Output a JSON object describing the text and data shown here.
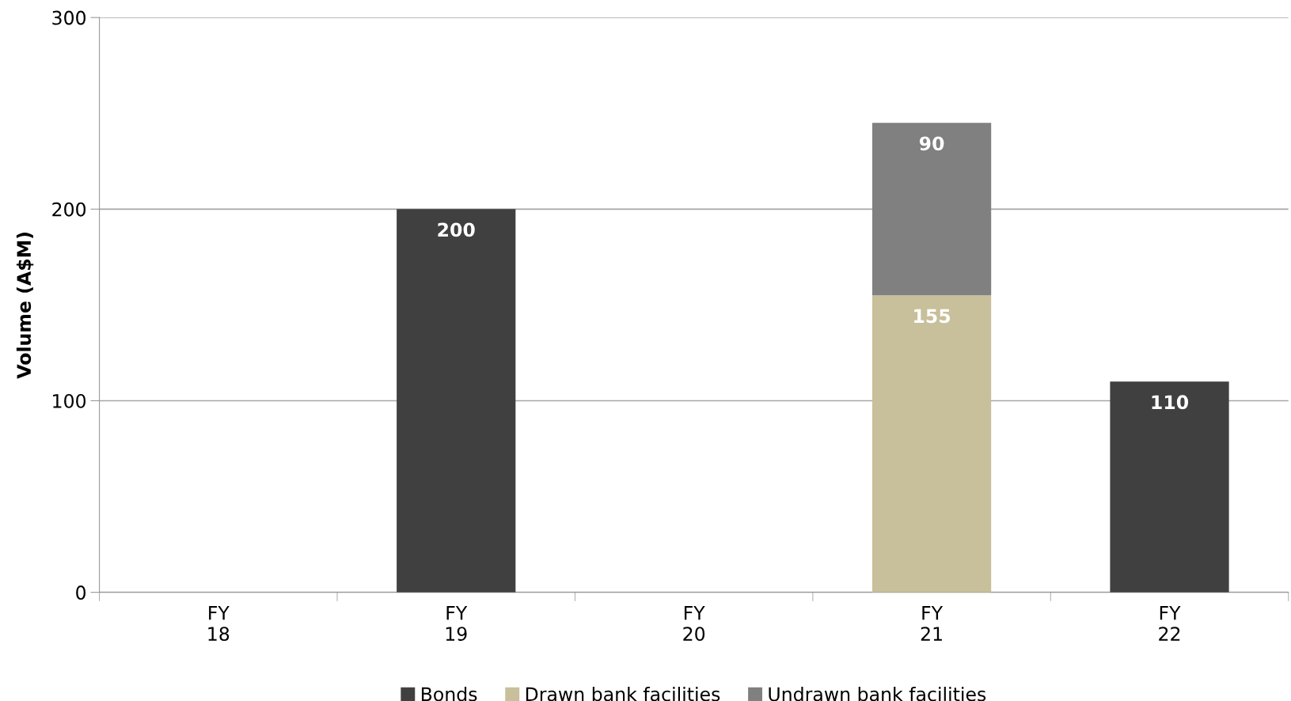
{
  "chart_data": {
    "type": "bar",
    "stacked": true,
    "ylabel": "Volume (A$M)",
    "categories": [
      "FY\n18",
      "FY\n19",
      "FY\n20",
      "FY\n21",
      "FY\n22"
    ],
    "series": [
      {
        "name": "Bonds",
        "color": "#404040",
        "values": [
          null,
          200,
          null,
          null,
          110
        ]
      },
      {
        "name": "Drawn bank facilities",
        "color": "#c8bf9b",
        "values": [
          null,
          null,
          null,
          155,
          null
        ]
      },
      {
        "name": "Undrawn bank facilities",
        "color": "#808080",
        "values": [
          null,
          null,
          null,
          90,
          null
        ]
      }
    ],
    "ylim": [
      0,
      300
    ],
    "yticks": [
      0,
      100,
      200,
      300
    ],
    "grid": "y",
    "legend": "bottom",
    "data_labels": true
  }
}
